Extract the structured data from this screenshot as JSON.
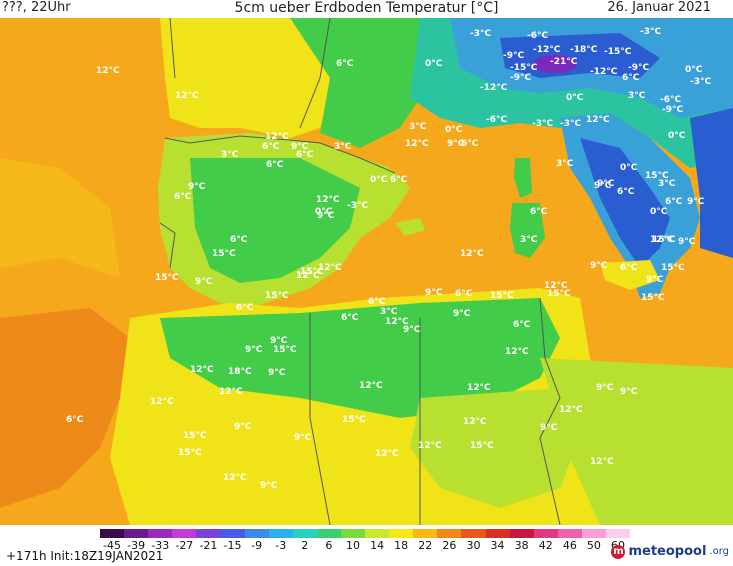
{
  "header": {
    "left": "???, 22Uhr",
    "title": "5cm ueber Erdboden Temperatur [°C]",
    "date": "26. Januar 2021"
  },
  "footer": {
    "run": "+171h  Init:18Z19JAN2021",
    "brand": "meteopool",
    "brand_tld": ".org",
    "brand_icon_letter": "m"
  },
  "colors": {
    "sea": "#f6a81c",
    "warm": "#f4b818",
    "yellow": "#f0e418",
    "lime": "#b8e030",
    "green": "#42cc4a",
    "teal": "#2cc4a0",
    "cyan": "#3aa0d8",
    "blue": "#2a5ed0",
    "purple": "#7a2ab8",
    "desert": "#ed8a1a",
    "border": "#555555"
  },
  "color_scale": {
    "ticks": [
      "-45",
      "-39",
      "-33",
      "-27",
      "-21",
      "-15",
      "-9",
      "-3",
      "2",
      "6",
      "10",
      "14",
      "18",
      "22",
      "26",
      "30",
      "34",
      "38",
      "42",
      "46",
      "50",
      "60"
    ],
    "colors": [
      "#3a0a4a",
      "#6a1a8a",
      "#9a2ab8",
      "#c43ad8",
      "#7a42d8",
      "#4a5ae8",
      "#3a8ae8",
      "#2ab0f0",
      "#2ad0c0",
      "#3ad070",
      "#7ada3a",
      "#c8e830",
      "#f8e818",
      "#f8b818",
      "#f08818",
      "#e85818",
      "#d83020",
      "#c81840",
      "#e03a80",
      "#f060b0",
      "#f8a0d8",
      "#fcd0ec"
    ]
  },
  "labels": [
    {
      "text": "12°C",
      "tone": "light"
    },
    {
      "text": "12°C",
      "tone": "light"
    },
    {
      "text": "6°C",
      "tone": "light"
    },
    {
      "text": "-3°C",
      "tone": "light"
    },
    {
      "text": "-6°C",
      "tone": "light"
    },
    {
      "text": "-3°C",
      "tone": "light"
    },
    {
      "text": "-9°C",
      "tone": "light"
    },
    {
      "text": "-12°C",
      "tone": "light"
    },
    {
      "text": "-18°C",
      "tone": "light"
    },
    {
      "text": "-15°C",
      "tone": "light"
    },
    {
      "text": "0°C",
      "tone": "light"
    },
    {
      "text": "-15°C",
      "tone": "light"
    },
    {
      "text": "-21°C",
      "tone": "light"
    },
    {
      "text": "-12°C",
      "tone": "light"
    },
    {
      "text": "-9°C",
      "tone": "light"
    },
    {
      "text": "0°C",
      "tone": "light"
    },
    {
      "text": "-3°C",
      "tone": "light"
    },
    {
      "text": "-12°C",
      "tone": "light"
    },
    {
      "text": "-9°C",
      "tone": "light"
    },
    {
      "text": "0°C",
      "tone": "light"
    },
    {
      "text": "6°C",
      "tone": "light"
    },
    {
      "text": "3°C",
      "tone": "light"
    },
    {
      "text": "-6°C",
      "tone": "light"
    },
    {
      "text": "-9°C",
      "tone": "light"
    },
    {
      "text": "-6°C",
      "tone": "light"
    },
    {
      "text": "3°C",
      "tone": "light"
    },
    {
      "text": "0°C",
      "tone": "light"
    },
    {
      "text": "-3°C",
      "tone": "light"
    },
    {
      "text": "-3°C",
      "tone": "light"
    },
    {
      "text": "12°C",
      "tone": "light"
    },
    {
      "text": "0°C",
      "tone": "light"
    },
    {
      "text": "12°C",
      "tone": "light"
    },
    {
      "text": "6°C",
      "tone": "light"
    },
    {
      "text": "9°C",
      "tone": "light"
    },
    {
      "text": "3°C",
      "tone": "light"
    },
    {
      "text": "3°C",
      "tone": "light"
    },
    {
      "text": "6°C",
      "tone": "light"
    },
    {
      "text": "6°C",
      "tone": "light"
    },
    {
      "text": "12°C",
      "tone": "light"
    },
    {
      "text": "9°C",
      "tone": "light"
    },
    {
      "text": "6°C",
      "tone": "light"
    },
    {
      "text": "0°C",
      "tone": "light"
    },
    {
      "text": "6°C",
      "tone": "light"
    },
    {
      "text": "9°C",
      "tone": "light"
    },
    {
      "text": "6°C",
      "tone": "light"
    },
    {
      "text": "12°C",
      "tone": "light"
    },
    {
      "text": "0°C",
      "tone": "light"
    },
    {
      "text": "-3°C",
      "tone": "light"
    },
    {
      "text": "9°C",
      "tone": "light"
    },
    {
      "text": "6°C",
      "tone": "light"
    },
    {
      "text": "3°C",
      "tone": "light"
    },
    {
      "text": "9°C",
      "tone": "light"
    },
    {
      "text": "0°C",
      "tone": "light"
    },
    {
      "text": "9°C",
      "tone": "light"
    },
    {
      "text": "3°C",
      "tone": "light"
    },
    {
      "text": "6°C",
      "tone": "light"
    },
    {
      "text": "15°C",
      "tone": "light"
    },
    {
      "text": "3°C",
      "tone": "light"
    },
    {
      "text": "0°C",
      "tone": "light"
    },
    {
      "text": "6°C",
      "tone": "light"
    },
    {
      "text": "9°C",
      "tone": "light"
    },
    {
      "text": "12°C",
      "tone": "light"
    },
    {
      "text": "15°C",
      "tone": "light"
    },
    {
      "text": "9°C",
      "tone": "light"
    },
    {
      "text": "6°C",
      "tone": "light"
    },
    {
      "text": "15°C",
      "tone": "light"
    },
    {
      "text": "12°C",
      "tone": "light"
    },
    {
      "text": "12°C",
      "tone": "light"
    },
    {
      "text": "15°C",
      "tone": "light"
    },
    {
      "text": "12°C",
      "tone": "light"
    },
    {
      "text": "9°C",
      "tone": "light"
    },
    {
      "text": "6°C",
      "tone": "light"
    },
    {
      "text": "15°C",
      "tone": "light"
    },
    {
      "text": "15°C",
      "tone": "light"
    },
    {
      "text": "9°C",
      "tone": "light"
    },
    {
      "text": "15°C",
      "tone": "light"
    },
    {
      "text": "12°C",
      "tone": "light"
    },
    {
      "text": "15°C",
      "tone": "light"
    },
    {
      "text": "9°C",
      "tone": "light"
    },
    {
      "text": "6°C",
      "tone": "light"
    },
    {
      "text": "15°C",
      "tone": "light"
    },
    {
      "text": "6°C",
      "tone": "light"
    },
    {
      "text": "6°C",
      "tone": "light"
    },
    {
      "text": "3°C",
      "tone": "light"
    },
    {
      "text": "6°C",
      "tone": "light"
    },
    {
      "text": "9°C",
      "tone": "light"
    },
    {
      "text": "12°C",
      "tone": "light"
    },
    {
      "text": "9°C",
      "tone": "light"
    },
    {
      "text": "6°C",
      "tone": "light"
    },
    {
      "text": "15°C",
      "tone": "light"
    },
    {
      "text": "9°C",
      "tone": "light"
    },
    {
      "text": "9°C",
      "tone": "light"
    },
    {
      "text": "9°C",
      "tone": "light"
    },
    {
      "text": "15°C",
      "tone": "light"
    },
    {
      "text": "12°C",
      "tone": "light"
    },
    {
      "text": "18°C",
      "tone": "light"
    },
    {
      "text": "12°C",
      "tone": "light"
    },
    {
      "text": "9°C",
      "tone": "light"
    },
    {
      "text": "12°C",
      "tone": "light"
    },
    {
      "text": "12°C",
      "tone": "light"
    },
    {
      "text": "9°C",
      "tone": "light"
    },
    {
      "text": "9°C",
      "tone": "light"
    },
    {
      "text": "6°C",
      "tone": "light"
    },
    {
      "text": "12°C",
      "tone": "light"
    },
    {
      "text": "12°C",
      "tone": "light"
    },
    {
      "text": "9°C",
      "tone": "light"
    },
    {
      "text": "15°C",
      "tone": "light"
    },
    {
      "text": "12°C",
      "tone": "light"
    },
    {
      "text": "12°C",
      "tone": "light"
    },
    {
      "text": "15°C",
      "tone": "light"
    },
    {
      "text": "15°C",
      "tone": "light"
    },
    {
      "text": "12°C",
      "tone": "light"
    },
    {
      "text": "9°C",
      "tone": "light"
    },
    {
      "text": "9°C",
      "tone": "light"
    },
    {
      "text": "12°C",
      "tone": "light"
    },
    {
      "text": "15°C",
      "tone": "light"
    },
    {
      "text": "12°C",
      "tone": "light"
    },
    {
      "text": "12°C",
      "tone": "light"
    },
    {
      "text": "9°C",
      "tone": "light"
    }
  ]
}
